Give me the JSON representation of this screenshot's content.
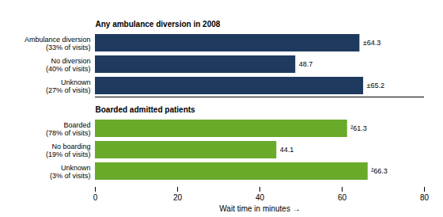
{
  "chart_data": {
    "type": "bar",
    "orientation": "horizontal",
    "xlabel": "Wait time in minutes",
    "xlim": [
      0,
      80
    ],
    "xticks": [
      0,
      20,
      40,
      60,
      80
    ],
    "data_labels": true,
    "series": [
      {
        "name": "Boarded admitted patients",
        "color": "#6aaa2a",
        "categories": [
          "Unknown\n(3% of visits)",
          "No boarding\n(19% of visits)",
          "Boarded\n(78% of visits)"
        ],
        "values": [
          66.3,
          44.1,
          61.3
        ],
        "value_labels": [
          "²66.3",
          "44.1",
          "²61.3"
        ]
      },
      {
        "name": "Any ambulance diversion in 2008",
        "color": "#1e3a5f",
        "categories": [
          "Unknown\n(27% of visits)",
          "No diversion\n(40% of visits)",
          "Ambulance diversion\n(33% of visits)"
        ],
        "values": [
          65.2,
          48.7,
          64.3
        ],
        "value_labels": [
          "±65.2",
          "48.7",
          "±64.3"
        ]
      }
    ]
  }
}
